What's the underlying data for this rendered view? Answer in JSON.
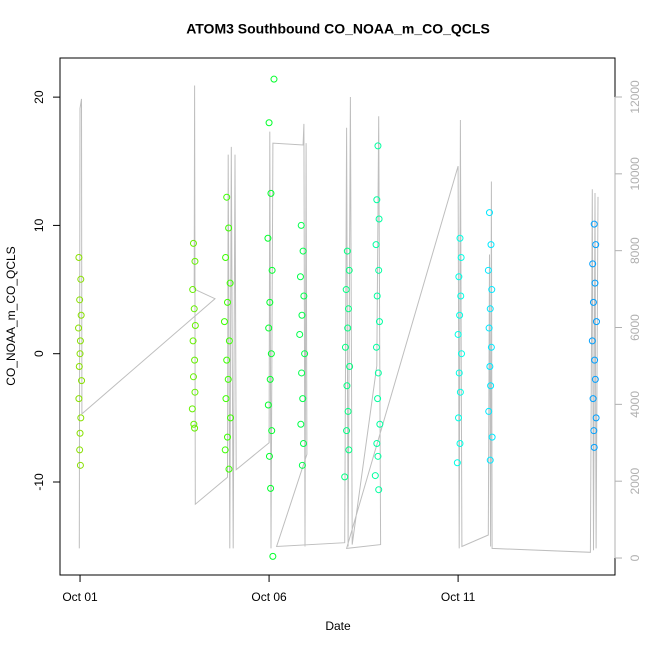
{
  "chart_data": {
    "type": "scatter",
    "title": "ATOM3 Southbound CO_NOAA_m_CO_QCLS",
    "xlabel": "Date",
    "ylabel": "CO_NOAA_m_CO_QCLS",
    "xlim": [
      -0.53,
      14.15
    ],
    "xticks": [
      {
        "value": 0,
        "label": "Oct 01"
      },
      {
        "value": 5,
        "label": "Oct 06"
      },
      {
        "value": 10,
        "label": "Oct 11"
      }
    ],
    "ylim": [
      -17.25,
      23.05
    ],
    "yticks": [
      -10,
      0,
      10,
      20
    ],
    "y2lim": [
      -442,
      13015
    ],
    "y2ticks": [
      0,
      2000,
      4000,
      6000,
      8000,
      10000,
      12000
    ],
    "series": [
      {
        "color": "#88e000",
        "x": [
          -0.03,
          0.02,
          -0.01,
          0.03,
          -0.04,
          0.01,
          0.0,
          -0.02,
          0.04,
          -0.03,
          0.02,
          0.0,
          -0.01,
          0.01
        ],
        "values": [
          7.5,
          5.8,
          4.2,
          3.0,
          2.0,
          1.0,
          0.0,
          -1.0,
          -2.1,
          -3.5,
          -5.0,
          -6.2,
          -7.5,
          -8.7
        ]
      },
      {
        "color": "#66f000",
        "x": [
          3.0,
          3.04,
          2.98,
          3.02,
          3.05,
          2.99,
          3.03,
          3.0,
          3.04,
          2.97,
          3.01,
          3.03
        ],
        "values": [
          8.6,
          7.2,
          5.0,
          3.5,
          2.2,
          1.0,
          -0.5,
          -1.8,
          -3.0,
          -4.3,
          -5.5,
          -5.8
        ]
      },
      {
        "color": "#3cff00",
        "x": [
          3.88,
          3.93,
          3.85,
          3.97,
          3.9,
          3.82,
          3.95,
          3.88,
          3.92,
          3.86,
          3.98,
          3.9,
          3.84,
          3.94
        ],
        "values": [
          12.2,
          9.8,
          7.5,
          5.5,
          4.0,
          2.5,
          1.0,
          -0.5,
          -2.0,
          -3.5,
          -5.0,
          -6.5,
          -7.5,
          -9.0
        ]
      },
      {
        "color": "#00ff2a",
        "x": [
          5.13,
          5.0,
          5.05,
          4.97,
          5.08,
          5.02,
          4.99,
          5.06,
          5.03,
          4.98,
          5.07,
          5.01,
          5.04,
          5.1
        ],
        "values": [
          21.4,
          18.0,
          12.5,
          9.0,
          6.5,
          4.0,
          2.0,
          0.0,
          -2.0,
          -4.0,
          -6.0,
          -8.0,
          -10.5,
          -15.8
        ]
      },
      {
        "color": "#00ff4a",
        "x": [
          5.85,
          5.9,
          5.83,
          5.92,
          5.87,
          5.81,
          5.94,
          5.86,
          5.89,
          5.84,
          5.91,
          5.88
        ],
        "values": [
          10.0,
          8.0,
          6.0,
          4.5,
          3.0,
          1.5,
          0.0,
          -1.5,
          -3.5,
          -5.5,
          -7.0,
          -8.7
        ]
      },
      {
        "color": "#00ff80",
        "x": [
          7.07,
          7.12,
          7.04,
          7.1,
          7.08,
          7.02,
          7.13,
          7.06,
          7.09,
          7.05,
          7.11,
          7.0
        ],
        "values": [
          8.0,
          6.5,
          5.0,
          3.5,
          2.0,
          0.5,
          -1.0,
          -2.5,
          -4.5,
          -6.0,
          -7.5,
          -9.6
        ]
      },
      {
        "color": "#00ffa0",
        "x": [
          7.88,
          7.85,
          7.91,
          7.83,
          7.9,
          7.86,
          7.92,
          7.84,
          7.89,
          7.87,
          7.93,
          7.85,
          7.88,
          7.81,
          7.9
        ],
        "values": [
          16.2,
          12.0,
          10.5,
          8.5,
          6.5,
          4.5,
          2.5,
          0.5,
          -1.5,
          -3.5,
          -5.5,
          -7.0,
          -8.0,
          -9.5,
          -10.6
        ]
      },
      {
        "color": "#00ffe6",
        "x": [
          10.05,
          10.08,
          10.02,
          10.07,
          10.04,
          10.0,
          10.09,
          10.03,
          10.06,
          10.01,
          10.05,
          9.98
        ],
        "values": [
          9.0,
          7.5,
          6.0,
          4.5,
          3.0,
          1.5,
          0.0,
          -1.5,
          -3.0,
          -5.0,
          -7.0,
          -8.5
        ]
      },
      {
        "color": "#00e8ff",
        "x": [
          10.83,
          10.87,
          10.8,
          10.89,
          10.85,
          10.82,
          10.88,
          10.84,
          10.86,
          10.81,
          10.9,
          10.85
        ],
        "values": [
          11.0,
          8.5,
          6.5,
          5.0,
          3.5,
          2.0,
          0.5,
          -1.0,
          -2.5,
          -4.5,
          -6.5,
          -8.3
        ]
      },
      {
        "color": "#00a0ff",
        "x": [
          13.6,
          13.64,
          13.56,
          13.62,
          13.58,
          13.66,
          13.55,
          13.61,
          13.63,
          13.57,
          13.65,
          13.59,
          13.6
        ],
        "values": [
          10.1,
          8.5,
          7.0,
          5.5,
          4.0,
          2.5,
          1.0,
          -0.5,
          -2.0,
          -3.5,
          -5.0,
          -6.0,
          -7.3
        ]
      }
    ],
    "line": {
      "axis": "y2",
      "color": "#bebebe",
      "x": [
        -0.02,
        0.0,
        0.04,
        0.05,
        3.57,
        3.02,
        3.03,
        3.05,
        3.9,
        3.92,
        3.96,
        4.0,
        4.05,
        4.1,
        4.13,
        5.0,
        5.02,
        5.05,
        5.1,
        5.9,
        5.92,
        5.95,
        5.98,
        6.0,
        5.2,
        7.0,
        7.05,
        7.09,
        7.15,
        7.2,
        7.85,
        7.9,
        7.95,
        7.05,
        10.0,
        10.03,
        10.06,
        10.1,
        10.8,
        10.83,
        10.86,
        10.88,
        10.9,
        13.5,
        13.55,
        13.58,
        13.62,
        13.65,
        13.7
      ],
      "values": [
        250,
        11700,
        11950,
        3750,
        6750,
        7000,
        12300,
        1400,
        2100,
        10500,
        250,
        10700,
        250,
        10500,
        2300,
        3000,
        11100,
        250,
        10800,
        10750,
        11300,
        300,
        10800,
        2700,
        300,
        400,
        11200,
        300,
        12000,
        350,
        5000,
        11500,
        350,
        250,
        10200,
        250,
        11400,
        300,
        600,
        7900,
        300,
        9800,
        250,
        150,
        9600,
        200,
        9500,
        250,
        9400
      ]
    }
  }
}
